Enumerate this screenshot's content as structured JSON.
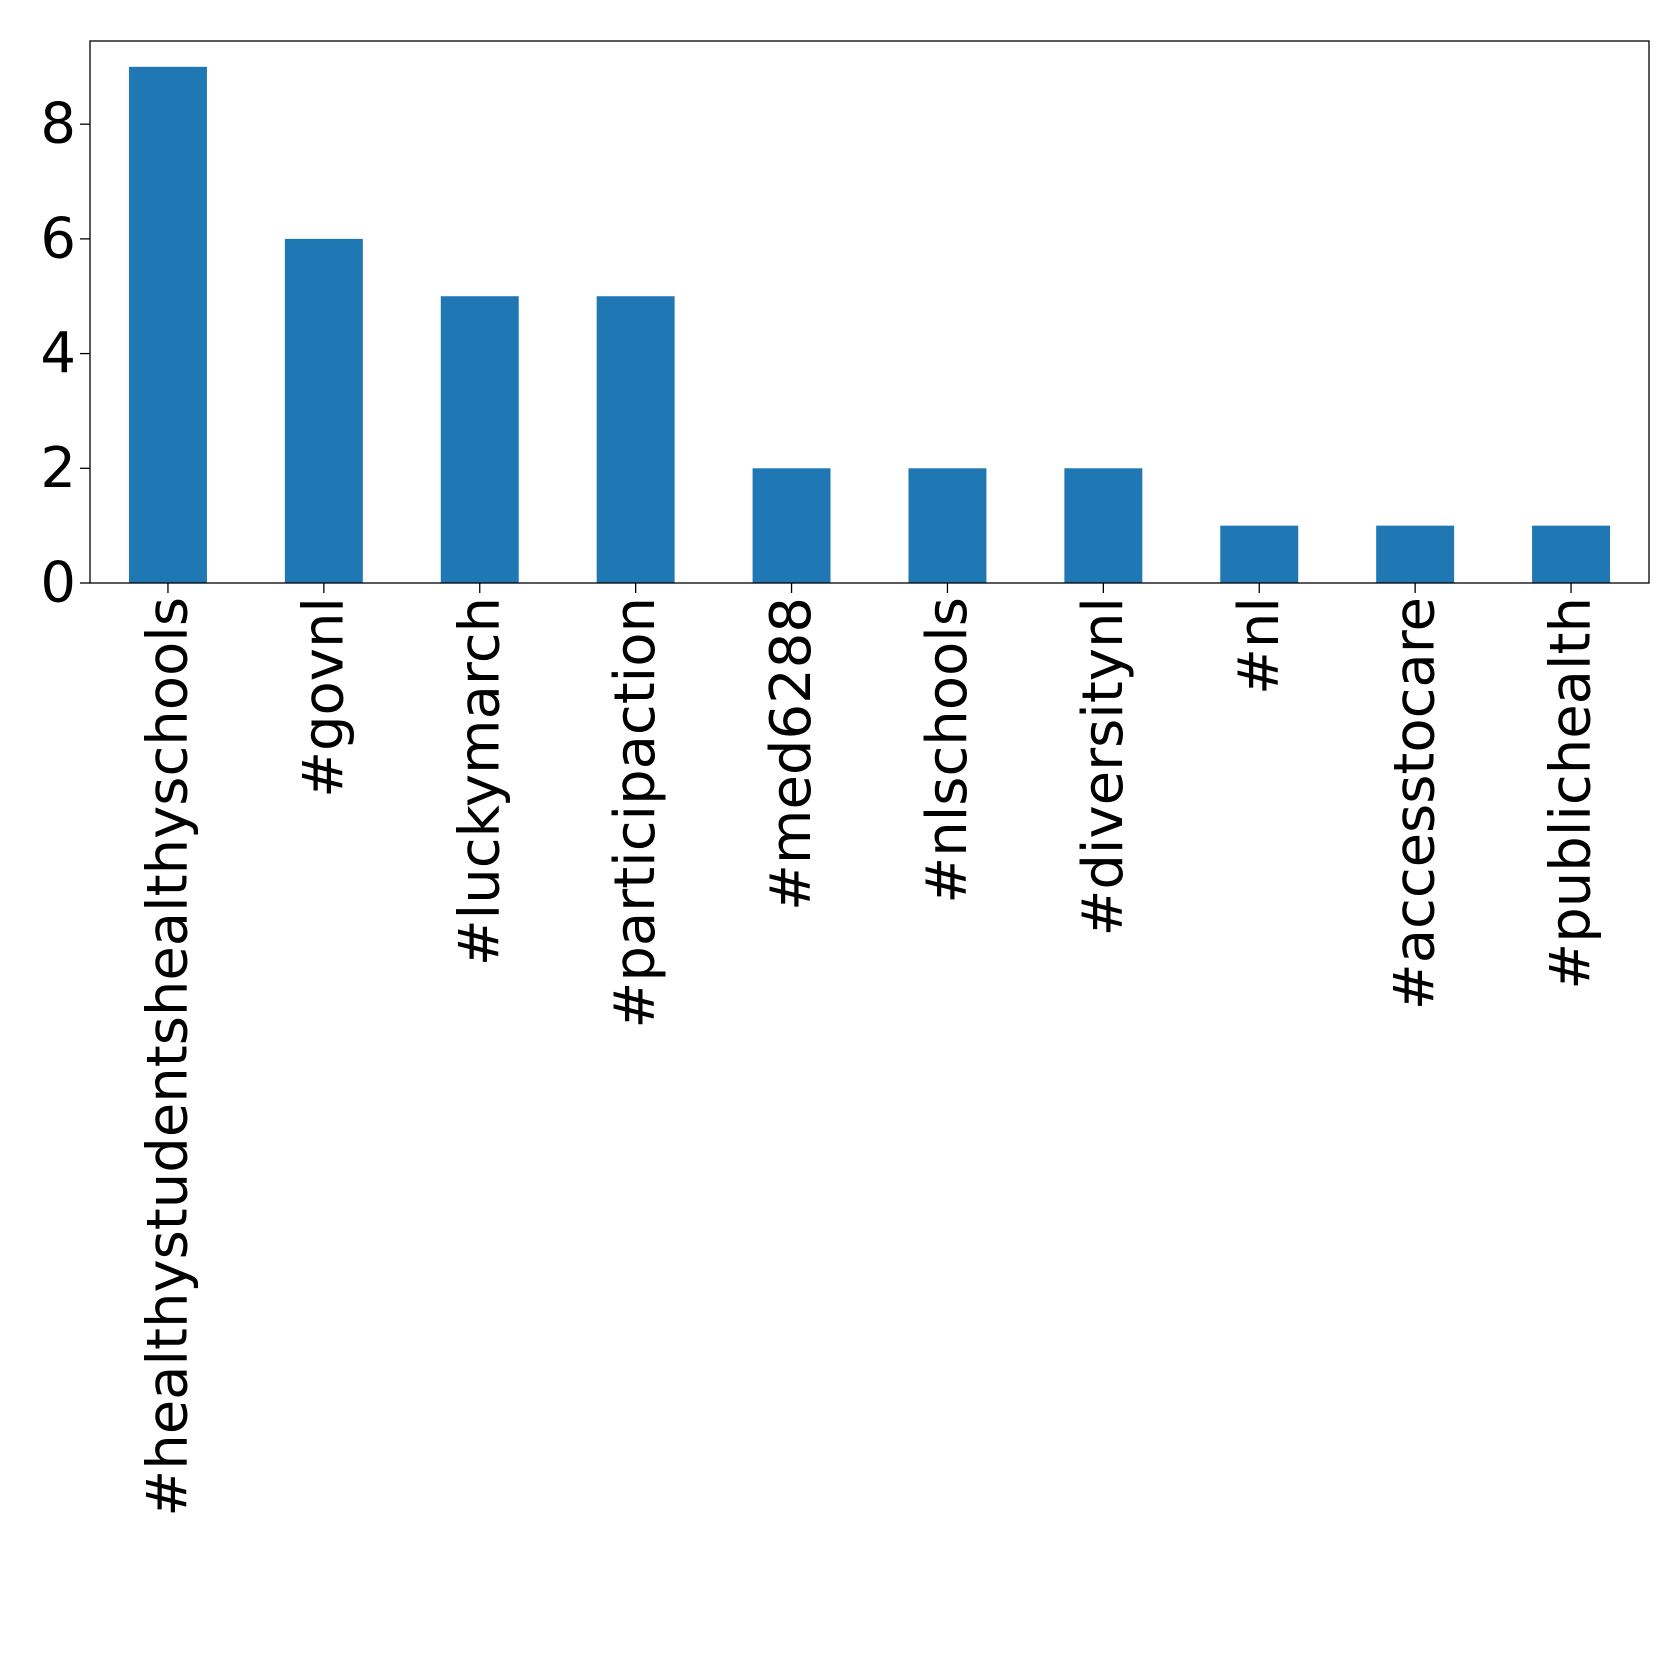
{
  "chart_data": {
    "type": "bar",
    "title": "",
    "xlabel": "",
    "ylabel": "",
    "categories": [
      "#healthystudentshealthyschools",
      "#govnl",
      "#luckymarch",
      "#participaction",
      "#med6288",
      "#nlschools",
      "#diversitynl",
      "#nl",
      "#accesstocare",
      "#publichealth"
    ],
    "values": [
      9,
      6,
      5,
      5,
      2,
      2,
      2,
      1,
      1,
      1
    ],
    "ylim": [
      0,
      9.45
    ],
    "yticks": [
      0,
      2,
      4,
      6,
      8
    ],
    "xtick_rotation": "vertical",
    "grid": false,
    "legend": "none",
    "bar_color": "#1f77b4",
    "axis_color": "#000000",
    "background": "#ffffff"
  }
}
